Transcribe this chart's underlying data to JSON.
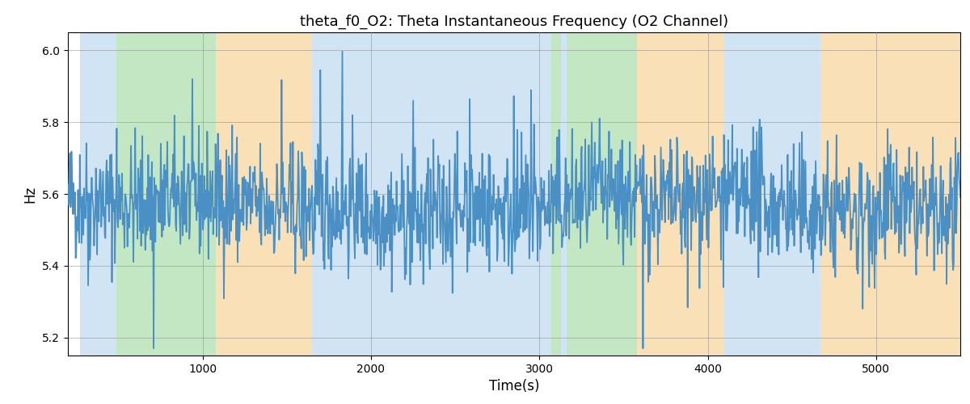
{
  "title": "theta_f0_O2: Theta Instantaneous Frequency (O2 Channel)",
  "xlabel": "Time(s)",
  "ylabel": "Hz",
  "xlim": [
    200,
    5500
  ],
  "ylim": [
    5.15,
    6.05
  ],
  "yticks": [
    5.2,
    5.4,
    5.6,
    5.8,
    6.0
  ],
  "xticks": [
    1000,
    2000,
    3000,
    4000,
    5000
  ],
  "line_color": "#4a90c4",
  "line_width": 1.3,
  "grid_color": "#888888",
  "bg_color": "#ffffff",
  "bands": [
    {
      "xmin": 270,
      "xmax": 490,
      "color": "#aacfec",
      "alpha": 0.55
    },
    {
      "xmin": 490,
      "xmax": 1080,
      "color": "#90d490",
      "alpha": 0.55
    },
    {
      "xmin": 1080,
      "xmax": 1650,
      "color": "#f5c87a",
      "alpha": 0.55
    },
    {
      "xmin": 1650,
      "xmax": 1900,
      "color": "#aacfec",
      "alpha": 0.55
    },
    {
      "xmin": 1900,
      "xmax": 2470,
      "color": "#aacfec",
      "alpha": 0.55
    },
    {
      "xmin": 2470,
      "xmax": 2980,
      "color": "#aacfec",
      "alpha": 0.55
    },
    {
      "xmin": 2980,
      "xmax": 3070,
      "color": "#aacfec",
      "alpha": 0.55
    },
    {
      "xmin": 3070,
      "xmax": 3130,
      "color": "#90d490",
      "alpha": 0.55
    },
    {
      "xmin": 3130,
      "xmax": 3160,
      "color": "#aacfec",
      "alpha": 0.55
    },
    {
      "xmin": 3160,
      "xmax": 3580,
      "color": "#90d490",
      "alpha": 0.55
    },
    {
      "xmin": 3580,
      "xmax": 3760,
      "color": "#f5c87a",
      "alpha": 0.55
    },
    {
      "xmin": 3760,
      "xmax": 4100,
      "color": "#f5c87a",
      "alpha": 0.55
    },
    {
      "xmin": 4100,
      "xmax": 4560,
      "color": "#aacfec",
      "alpha": 0.55
    },
    {
      "xmin": 4560,
      "xmax": 4670,
      "color": "#aacfec",
      "alpha": 0.55
    },
    {
      "xmin": 4670,
      "xmax": 5500,
      "color": "#f5c87a",
      "alpha": 0.55
    }
  ],
  "seed": 42,
  "n_points": 1500,
  "base_freq": 5.565,
  "noise_scale": 0.085,
  "spike_prob": 0.03,
  "spike_scale": 0.22
}
